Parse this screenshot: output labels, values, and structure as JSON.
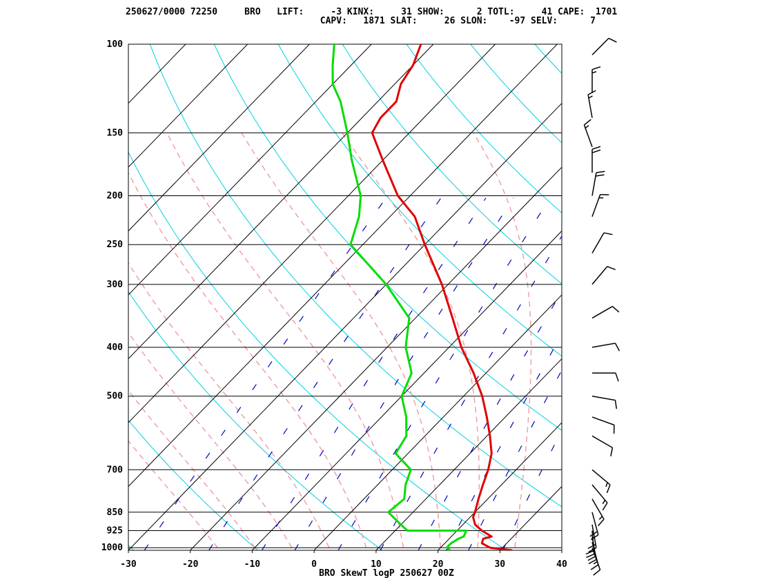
{
  "header": {
    "line1": "250627/0000 72250     BRO   LIFT:     -3 KINX:     31 SHOW:      2 TOTL:     41 CAPE:  1701",
    "line2": "                                    CAPV:   1871 SLAT:     26 SLON:    -97 SELV:      7"
  },
  "footer": {
    "title": "BRO SkewT logP 250627 00Z"
  },
  "chart_data": {
    "type": "skew-t",
    "station": "BRO",
    "pressure_levels": [
      100,
      150,
      200,
      250,
      300,
      400,
      500,
      700,
      850,
      925,
      1000
    ],
    "x_ticks": [
      -30,
      -20,
      -10,
      0,
      10,
      20,
      30,
      40
    ],
    "xlim": [
      -30,
      40
    ],
    "ylim": [
      1000,
      100
    ],
    "colors": {
      "temperature": "#e00000",
      "dewpoint": "#00dd00",
      "isotherm": "#000000",
      "dry_adiabat": "#00d0e0",
      "moist_adiabat": "#f0a0a8",
      "mixing_ratio": "#0000c0",
      "isobar": "#000000",
      "wind_barb": "#000000"
    },
    "temperature": [
      [
        1012,
        32
      ],
      [
        1000,
        28
      ],
      [
        980,
        26
      ],
      [
        960,
        25.5
      ],
      [
        950,
        26.5
      ],
      [
        925,
        24
      ],
      [
        900,
        22
      ],
      [
        870,
        20.5
      ],
      [
        850,
        20
      ],
      [
        800,
        18.5
      ],
      [
        750,
        17
      ],
      [
        700,
        15.5
      ],
      [
        650,
        13.5
      ],
      [
        600,
        10.5
      ],
      [
        550,
        7
      ],
      [
        500,
        3
      ],
      [
        450,
        -2
      ],
      [
        400,
        -8
      ],
      [
        350,
        -14
      ],
      [
        300,
        -21
      ],
      [
        250,
        -30
      ],
      [
        220,
        -36
      ],
      [
        200,
        -42
      ],
      [
        170,
        -50
      ],
      [
        150,
        -56
      ],
      [
        140,
        -57
      ],
      [
        130,
        -57
      ],
      [
        120,
        -59
      ],
      [
        110,
        -60
      ],
      [
        100,
        -62
      ]
    ],
    "dewpoint": [
      [
        1012,
        22
      ],
      [
        1000,
        21
      ],
      [
        980,
        21
      ],
      [
        960,
        21.5
      ],
      [
        950,
        22
      ],
      [
        925,
        21.5
      ],
      [
        925,
        12
      ],
      [
        900,
        10
      ],
      [
        850,
        6
      ],
      [
        800,
        6.5
      ],
      [
        750,
        4.5
      ],
      [
        700,
        3
      ],
      [
        650,
        -2
      ],
      [
        600,
        -3
      ],
      [
        550,
        -6
      ],
      [
        500,
        -10
      ],
      [
        450,
        -12
      ],
      [
        400,
        -17
      ],
      [
        350,
        -21
      ],
      [
        300,
        -30
      ],
      [
        250,
        -42
      ],
      [
        220,
        -45
      ],
      [
        200,
        -48
      ],
      [
        170,
        -55
      ],
      [
        150,
        -60
      ],
      [
        130,
        -66
      ],
      [
        120,
        -70
      ],
      [
        110,
        -73
      ],
      [
        100,
        -76
      ]
    ],
    "wind_barbs": [
      {
        "p": 1000,
        "dir": 160,
        "spd": 10
      },
      {
        "p": 975,
        "dir": 165,
        "spd": 15
      },
      {
        "p": 950,
        "dir": 170,
        "spd": 20
      },
      {
        "p": 925,
        "dir": 175,
        "spd": 20
      },
      {
        "p": 900,
        "dir": 170,
        "spd": 20
      },
      {
        "p": 850,
        "dir": 165,
        "spd": 20
      },
      {
        "p": 800,
        "dir": 150,
        "spd": 15
      },
      {
        "p": 750,
        "dir": 140,
        "spd": 15
      },
      {
        "p": 700,
        "dir": 130,
        "spd": 15
      },
      {
        "p": 600,
        "dir": 120,
        "spd": 10
      },
      {
        "p": 550,
        "dir": 110,
        "spd": 10
      },
      {
        "p": 500,
        "dir": 100,
        "spd": 10
      },
      {
        "p": 450,
        "dir": 90,
        "spd": 10
      },
      {
        "p": 400,
        "dir": 80,
        "spd": 10
      },
      {
        "p": 350,
        "dir": 60,
        "spd": 10
      },
      {
        "p": 300,
        "dir": 40,
        "spd": 10
      },
      {
        "p": 260,
        "dir": 30,
        "spd": 10
      },
      {
        "p": 220,
        "dir": 20,
        "spd": 15
      },
      {
        "p": 200,
        "dir": 10,
        "spd": 20
      },
      {
        "p": 180,
        "dir": 360,
        "spd": 20
      },
      {
        "p": 160,
        "dir": 340,
        "spd": 15
      },
      {
        "p": 140,
        "dir": 350,
        "spd": 15
      },
      {
        "p": 125,
        "dir": 360,
        "spd": 15
      },
      {
        "p": 105,
        "dir": 45,
        "spd": 10
      }
    ]
  }
}
